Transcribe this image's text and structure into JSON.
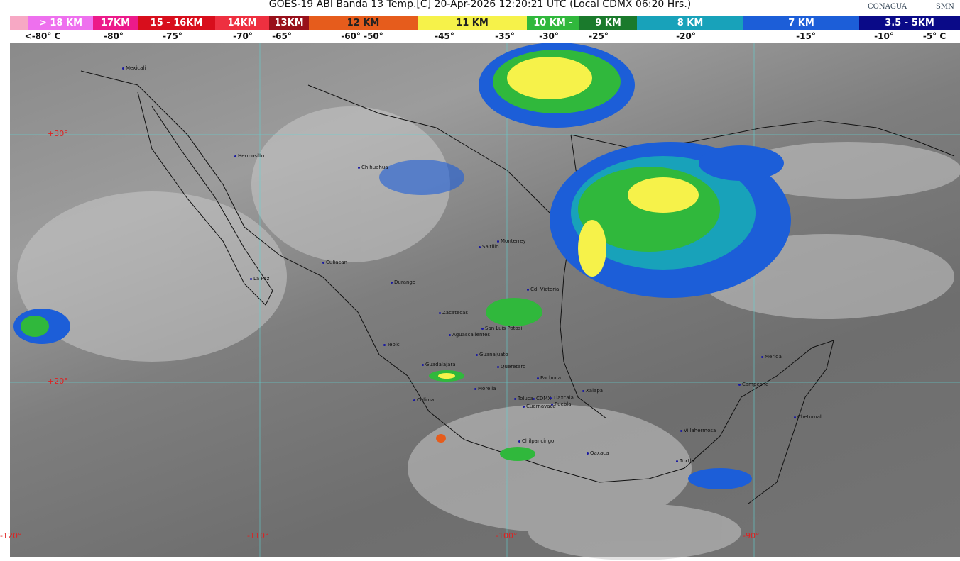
{
  "header": {
    "title": "GOES-19 ABI Banda 13 Temp.[C] 20-Apr-2026 12:20:21 UTC (Local CDMX  06:20 Hrs.)",
    "logos": [
      "CONAGUA",
      "SMN"
    ]
  },
  "legend": {
    "bands": [
      {
        "label": "",
        "color": "#f7a8c4"
      },
      {
        "label": "> 18 KM",
        "color": "#ee70ee"
      },
      {
        "label": "17KM",
        "color": "#ec1a8a"
      },
      {
        "label": "15 - 16KM",
        "color": "#d80e1c"
      },
      {
        "label": "14KM",
        "color": "#ee3040"
      },
      {
        "label": "13KM",
        "color": "#98101a"
      },
      {
        "label": "12 KM",
        "color": "#e65c1c"
      },
      {
        "label": "11 KM",
        "color": "#f6f24a"
      },
      {
        "label": "10 KM -",
        "color": "#30b83c"
      },
      {
        "label": "9 KM",
        "color": "#1a7a2c"
      },
      {
        "label": "8 KM",
        "color": "#18a2ba"
      },
      {
        "label": "7 KM",
        "color": "#1c5ed8"
      },
      {
        "label": "3.5 - 5KM",
        "color": "#0a0a88"
      }
    ],
    "temps": [
      "<-80° C",
      "-80°",
      "-75°",
      "-70°",
      "-65°",
      "-60° -50°",
      "-45°",
      "-35°",
      "-30°",
      "-25°",
      "-20°",
      "-15°",
      "-10°",
      "-5° C"
    ]
  },
  "map": {
    "grid_labels": {
      "lat30": "+30°",
      "lat20": "+20°",
      "lon120": "-120°",
      "lon110": "-110°",
      "lon100": "-100°",
      "lon90": "-90°"
    },
    "cities": [
      "Mexicali",
      "Hermosillo",
      "Chihuahua",
      "La Paz",
      "Culiacan",
      "Durango",
      "Saltillo",
      "Monterrey",
      "Cd. Victoria",
      "Zacatecas",
      "San Luis Potosi",
      "Aguascalientes",
      "Tepic",
      "Guadalajara",
      "Guanajuato",
      "Queretaro",
      "Pachuca",
      "Morelia",
      "Colima",
      "Toluca",
      "CDMX",
      "Tlaxcala",
      "Puebla",
      "Cuernavaca",
      "Xalapa",
      "Chilpancingo",
      "Oaxaca",
      "Villahermosa",
      "Tuxtla",
      "Campeche",
      "Merida",
      "Chetumal"
    ]
  }
}
